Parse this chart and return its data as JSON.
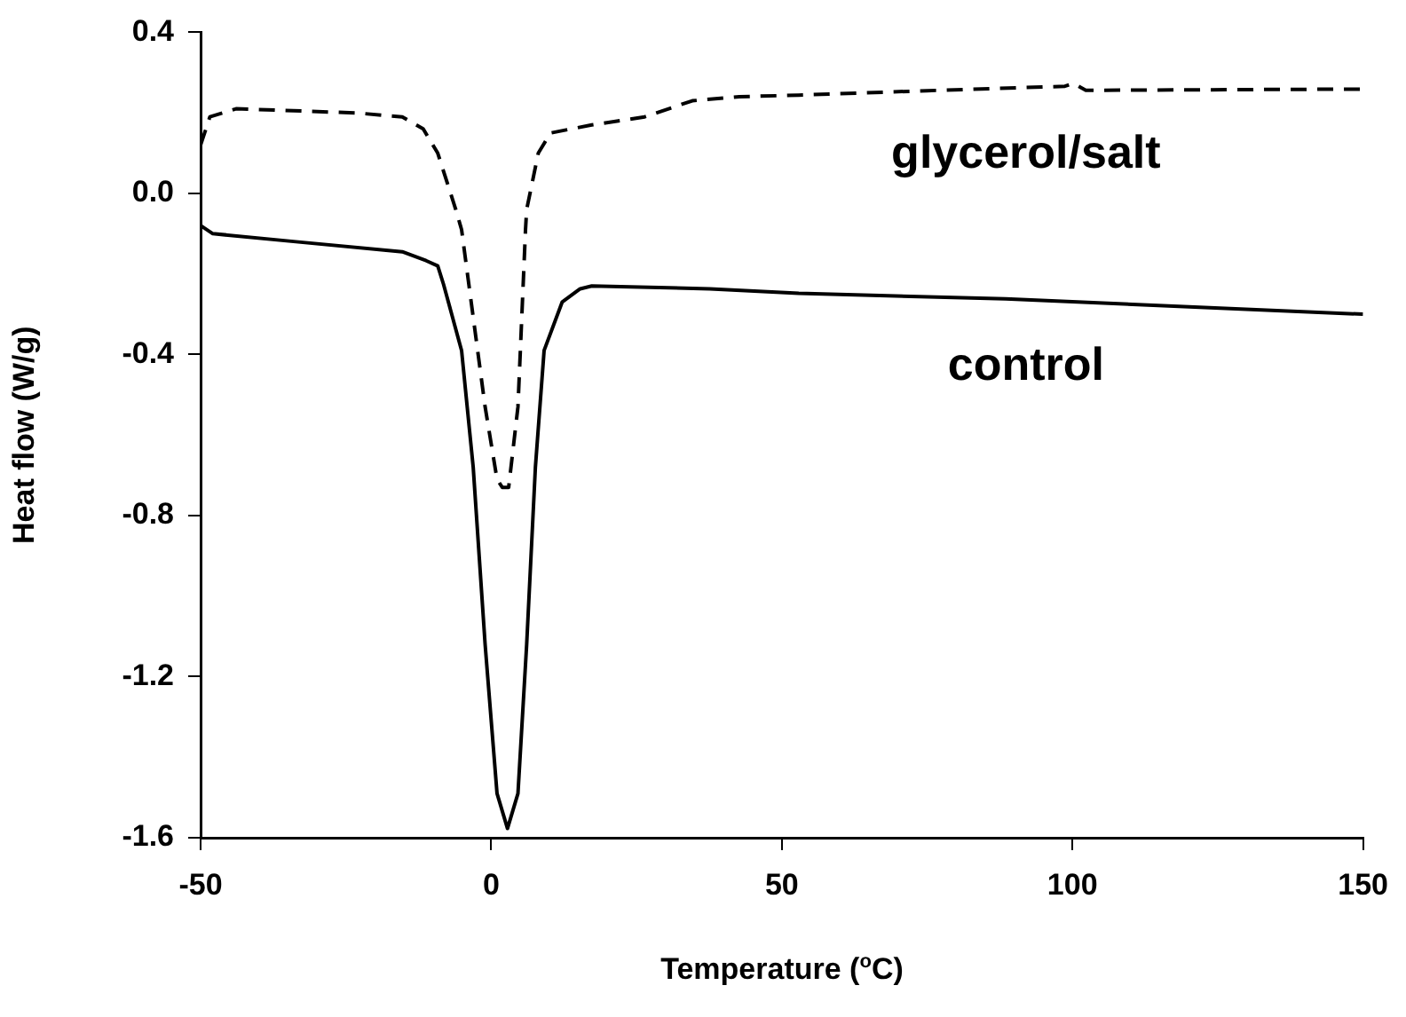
{
  "chart_data": {
    "type": "line",
    "xlabel": "Temperature ($^{o}$C)",
    "ylabel": "Heat flow (W/g)",
    "xlim": [
      -50,
      150
    ],
    "xticks": [
      -50,
      0,
      50,
      100,
      150
    ],
    "ylim": [
      -1.6,
      0.4
    ],
    "yticks": [
      {
        "value": -1.6,
        "label": "-1.6"
      },
      {
        "value": -1.2,
        "label": "-1.2"
      },
      {
        "value": -0.8,
        "label": "-0.8"
      },
      {
        "value": -0.4,
        "label": "-0.4"
      },
      {
        "value": 0,
        "label": "0.0"
      },
      {
        "value": 0.4,
        "label": "0.4"
      }
    ],
    "grid": false,
    "legend": false,
    "marker": "none",
    "series": [
      {
        "name": "glycerol/salt",
        "color": "#000000",
        "line_style": "dashed",
        "x": [
          -50,
          -48.4,
          -43.9,
          -23.4,
          -15.3,
          -11.7,
          -9.2,
          -6.1,
          -5.1,
          -1.05,
          1.0,
          1.9,
          3.0,
          4.6,
          5.9,
          6.1,
          8.1,
          10.2,
          17.3,
          26.4,
          34.6,
          42.7,
          52.9,
          75,
          98.7,
          100.2,
          102.3,
          150
        ],
        "values": [
          0.12,
          0.19,
          0.21,
          0.2,
          0.19,
          0.16,
          0.1,
          -0.04,
          -0.09,
          -0.53,
          -0.71,
          -0.73,
          -0.73,
          -0.53,
          -0.09,
          -0.04,
          0.1,
          0.15,
          0.17,
          0.19,
          0.23,
          0.24,
          0.244,
          0.255,
          0.266,
          0.273,
          0.256,
          0.259
        ]
      },
      {
        "name": "control",
        "color": "#000000",
        "line_style": "solid",
        "x": [
          -50,
          -47.9,
          -33.6,
          -15.3,
          -11.2,
          -9.2,
          -8.2,
          -5.1,
          -3.1,
          -1.05,
          1.0,
          2.8,
          4.6,
          6.1,
          7.6,
          9.1,
          12.2,
          15.3,
          17.3,
          37.6,
          52.9,
          88.5,
          150
        ],
        "values": [
          -0.08,
          -0.1,
          -0.12,
          -0.145,
          -0.167,
          -0.18,
          -0.226,
          -0.39,
          -0.68,
          -1.12,
          -1.49,
          -1.577,
          -1.49,
          -1.12,
          -0.68,
          -0.39,
          -0.27,
          -0.237,
          -0.23,
          -0.237,
          -0.248,
          -0.262,
          -0.3
        ]
      }
    ]
  }
}
